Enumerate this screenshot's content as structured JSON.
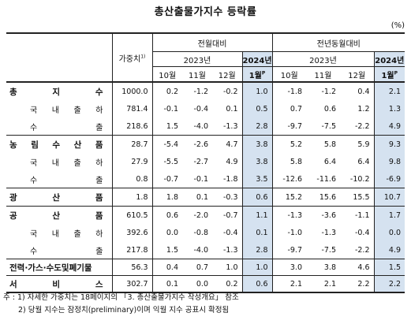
{
  "title": "총산출물가지수 등락률",
  "unit": "(%)",
  "header": {
    "weight": "가중치",
    "weight_sup": "1)",
    "mom": "전월대비",
    "yoy": "전년동월대비",
    "year1": "2023년",
    "year2": "2024년",
    "months": [
      "10월",
      "11월",
      "12월"
    ],
    "jan": "1월",
    "jan_sup": "P"
  },
  "rows": [
    {
      "label": "총 지 수",
      "weight": "1000.0",
      "mom": [
        "0.2",
        "-1.2",
        "-0.2",
        "1.0"
      ],
      "yoy": [
        "-1.8",
        "-1.2",
        "0.4",
        "2.1"
      ]
    },
    {
      "label": "국 내 출 하",
      "weight": "781.4",
      "mom": [
        "-0.1",
        "-0.4",
        "0.1",
        "0.5"
      ],
      "yoy": [
        "0.7",
        "0.6",
        "1.2",
        "1.3"
      ]
    },
    {
      "label": "수 출",
      "weight": "218.6",
      "mom": [
        "1.5",
        "-4.0",
        "-1.3",
        "2.8"
      ],
      "yoy": [
        "-9.7",
        "-7.5",
        "-2.2",
        "4.9"
      ]
    },
    {
      "label": "농 림 수 산 품",
      "weight": "28.7",
      "mom": [
        "-5.4",
        "-2.6",
        "4.7",
        "3.8"
      ],
      "yoy": [
        "5.2",
        "5.8",
        "5.9",
        "9.3"
      ]
    },
    {
      "label": "국 내 출 하",
      "weight": "27.9",
      "mom": [
        "-5.5",
        "-2.7",
        "4.9",
        "3.8"
      ],
      "yoy": [
        "5.8",
        "6.4",
        "6.4",
        "9.8"
      ]
    },
    {
      "label": "수 출",
      "weight": "0.8",
      "mom": [
        "-0.7",
        "-0.1",
        "-1.8",
        "3.5"
      ],
      "yoy": [
        "-12.6",
        "-11.6",
        "-10.2",
        "-6.9"
      ]
    },
    {
      "label": "광 산 품",
      "weight": "1.8",
      "mom": [
        "1.8",
        "0.1",
        "-0.3",
        "0.6"
      ],
      "yoy": [
        "15.2",
        "15.6",
        "15.5",
        "10.7"
      ]
    },
    {
      "label": "공 산 품",
      "weight": "610.5",
      "mom": [
        "0.6",
        "-2.0",
        "-0.7",
        "1.1"
      ],
      "yoy": [
        "-1.3",
        "-3.6",
        "-1.1",
        "1.7"
      ]
    },
    {
      "label": "국 내 출 하",
      "weight": "392.6",
      "mom": [
        "0.0",
        "-0.8",
        "-0.4",
        "0.1"
      ],
      "yoy": [
        "-1.0",
        "-1.3",
        "-0.4",
        "0.0"
      ]
    },
    {
      "label": "수 출",
      "weight": "217.8",
      "mom": [
        "1.5",
        "-4.0",
        "-1.3",
        "2.8"
      ],
      "yoy": [
        "-9.7",
        "-7.5",
        "-2.2",
        "4.9"
      ]
    },
    {
      "label": "전력·가스·수도및폐기물",
      "weight": "56.3",
      "mom": [
        "0.4",
        "0.7",
        "1.0",
        "1.0"
      ],
      "yoy": [
        "3.0",
        "3.8",
        "4.6",
        "1.5"
      ]
    },
    {
      "label": "서 비 스",
      "weight": "302.7",
      "mom": [
        "0.1",
        "0.0",
        "0.2",
        "0.6"
      ],
      "yoy": [
        "2.1",
        "2.1",
        "2.2",
        "2.2"
      ]
    }
  ],
  "notes": [
    "주 : 1) 자세한 가중치는 18페이지의 「3. 총산출물가지수 작성개요」 참조",
    "2) 당월 지수는 잠정치(preliminary)이며 익월 지수 공표시 확정됨"
  ]
}
